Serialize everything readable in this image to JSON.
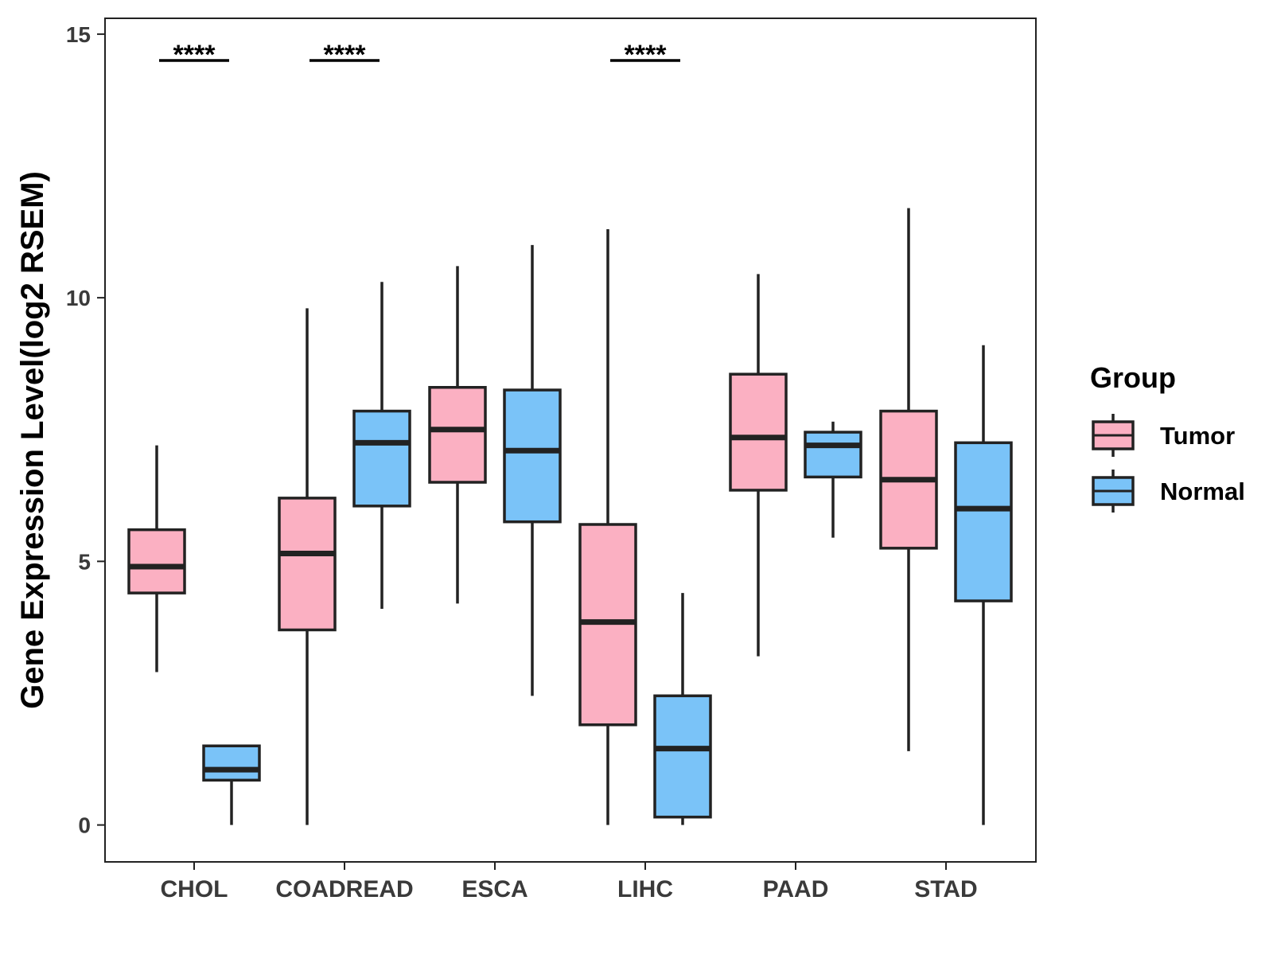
{
  "chart_data": {
    "type": "boxplot",
    "title": "",
    "xlabel": "",
    "ylabel": "Gene Expression Level(log2 RSEM)",
    "ylim": [
      -0.7,
      15.3
    ],
    "yticks": [
      0,
      5,
      10,
      15
    ],
    "ytick_labels": [
      "0",
      "5",
      "10",
      "15"
    ],
    "categories": [
      "CHOL",
      "COADREAD",
      "ESCA",
      "LIHC",
      "PAAD",
      "STAD"
    ],
    "legend": {
      "title": "Group",
      "position": "right",
      "entries": [
        "Tumor",
        "Normal"
      ]
    },
    "colors": {
      "Tumor": "#fbb0c2",
      "Normal": "#7ac3f8",
      "stroke": "#222222",
      "frame": "#222222"
    },
    "series": [
      {
        "name": "Tumor",
        "boxes": [
          {
            "category": "CHOL",
            "min": 2.9,
            "q1": 4.4,
            "median": 4.9,
            "q3": 5.6,
            "max": 7.2
          },
          {
            "category": "COADREAD",
            "min": 0.0,
            "q1": 3.7,
            "median": 5.15,
            "q3": 6.2,
            "max": 9.8
          },
          {
            "category": "ESCA",
            "min": 4.2,
            "q1": 6.5,
            "median": 7.5,
            "q3": 8.3,
            "max": 10.6
          },
          {
            "category": "LIHC",
            "min": 0.0,
            "q1": 1.9,
            "median": 3.85,
            "q3": 5.7,
            "max": 11.3
          },
          {
            "category": "PAAD",
            "min": 3.2,
            "q1": 6.35,
            "median": 7.35,
            "q3": 8.55,
            "max": 10.45
          },
          {
            "category": "STAD",
            "min": 1.4,
            "q1": 5.25,
            "median": 6.55,
            "q3": 7.85,
            "max": 11.7
          }
        ]
      },
      {
        "name": "Normal",
        "boxes": [
          {
            "category": "CHOL",
            "min": 0.0,
            "q1": 0.85,
            "median": 1.05,
            "q3": 1.5,
            "max": 1.5
          },
          {
            "category": "COADREAD",
            "min": 4.1,
            "q1": 6.05,
            "median": 7.25,
            "q3": 7.85,
            "max": 10.3
          },
          {
            "category": "ESCA",
            "min": 2.45,
            "q1": 5.75,
            "median": 7.1,
            "q3": 8.25,
            "max": 11.0
          },
          {
            "category": "LIHC",
            "min": 0.0,
            "q1": 0.15,
            "median": 1.45,
            "q3": 2.45,
            "max": 4.4
          },
          {
            "category": "PAAD",
            "min": 5.45,
            "q1": 6.6,
            "median": 7.2,
            "q3": 7.45,
            "max": 7.65
          },
          {
            "category": "STAD",
            "min": 0.0,
            "q1": 4.25,
            "median": 6.0,
            "q3": 7.25,
            "max": 9.1
          }
        ]
      }
    ],
    "significance": [
      {
        "category": "CHOL",
        "label": "****",
        "y": 14.5
      },
      {
        "category": "COADREAD",
        "label": "****",
        "y": 14.5
      },
      {
        "category": "LIHC",
        "label": "****",
        "y": 14.5
      }
    ]
  }
}
